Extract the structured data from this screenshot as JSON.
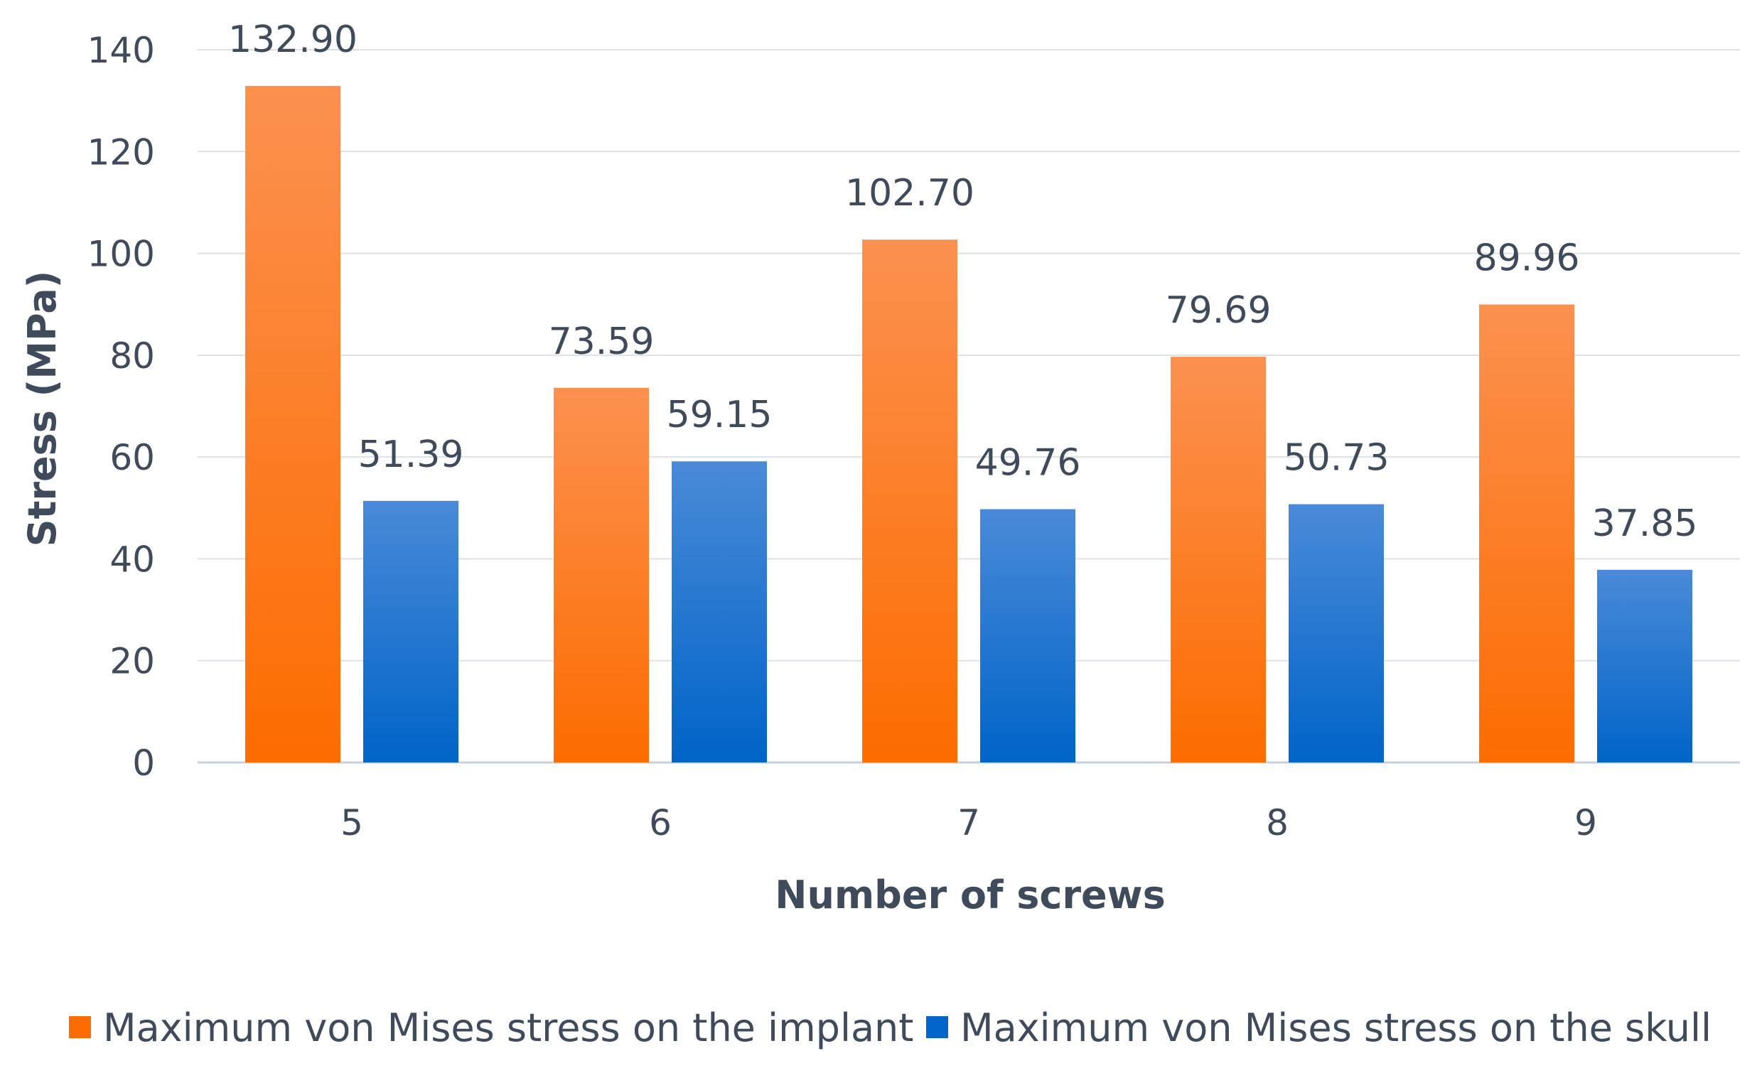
{
  "chart_data": {
    "type": "bar",
    "title": "",
    "xlabel": "Number of screws",
    "ylabel": "Stress (MPa)",
    "categories": [
      "5",
      "6",
      "7",
      "8",
      "9"
    ],
    "ylim": [
      0,
      140
    ],
    "yticks": [
      0,
      20,
      40,
      60,
      80,
      100,
      120,
      140
    ],
    "grid": true,
    "legend_position": "bottom",
    "series": [
      {
        "name": "Maximum von Mises stress on the implant",
        "values": [
          132.9,
          73.59,
          102.7,
          79.69,
          89.96
        ],
        "labels": [
          "132.90",
          "73.59",
          "102.70",
          "79.69",
          "89.96"
        ],
        "color_top": "#fb9150",
        "color_bottom": "#fd6c00"
      },
      {
        "name": "Maximum von Mises stress on the skull",
        "values": [
          51.39,
          59.15,
          49.76,
          50.73,
          37.85
        ],
        "labels": [
          "51.39",
          "59.15",
          "49.76",
          "50.73",
          "37.85"
        ],
        "color_top": "#4a8ad8",
        "color_bottom": "#0064c8"
      }
    ]
  }
}
